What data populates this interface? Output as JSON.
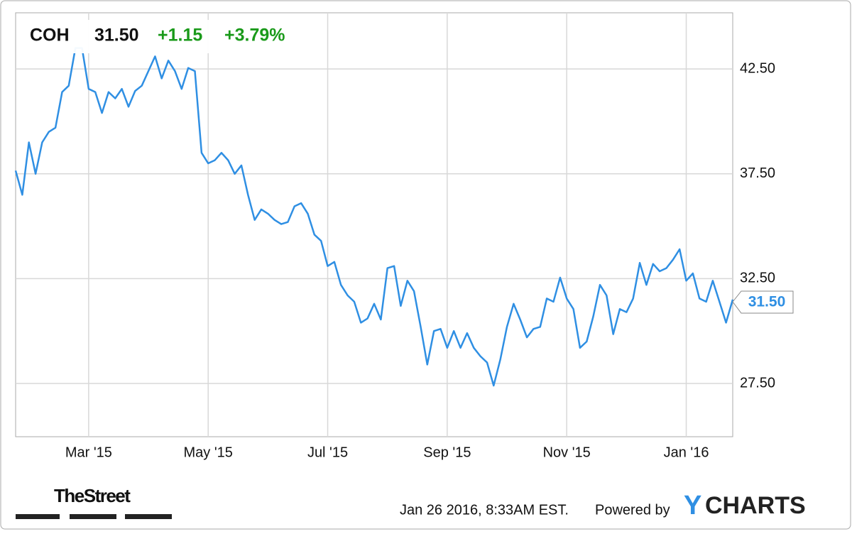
{
  "chart_data": {
    "type": "line",
    "header": {
      "ticker": "COH",
      "price": "31.50",
      "change": "+1.15",
      "change_pct": "+3.79%"
    },
    "last_label": "31.50",
    "categories": [
      null,
      null,
      null,
      null,
      null,
      null,
      null,
      null,
      null,
      null,
      null,
      "Mar '15",
      null,
      null,
      null,
      null,
      null,
      null,
      null,
      null,
      null,
      null,
      null,
      null,
      null,
      null,
      null,
      null,
      null,
      "May '15",
      null,
      null,
      null,
      null,
      null,
      null,
      null,
      null,
      null,
      null,
      null,
      null,
      null,
      null,
      null,
      null,
      null,
      "Jul '15",
      null,
      null,
      null,
      null,
      null,
      null,
      null,
      null,
      null,
      null,
      null,
      null,
      null,
      null,
      null,
      null,
      null,
      "Sep '15",
      null,
      null,
      null,
      null,
      null,
      null,
      null,
      null,
      null,
      null,
      null,
      null,
      null,
      null,
      null,
      null,
      null,
      "Nov '15",
      null,
      null,
      null,
      null,
      null,
      null,
      null,
      null,
      null,
      null,
      null,
      null,
      null,
      null,
      null,
      null,
      null,
      "Jan '16",
      null,
      null,
      null,
      null,
      null,
      null,
      null
    ],
    "values": [
      37.65,
      36.5,
      39.0,
      37.5,
      39.0,
      39.5,
      39.7,
      41.4,
      41.7,
      43.5,
      43.5,
      41.55,
      41.4,
      40.4,
      41.4,
      41.1,
      41.55,
      40.7,
      41.45,
      41.7,
      42.4,
      43.1,
      42.05,
      42.9,
      42.4,
      41.55,
      42.55,
      42.4,
      38.5,
      38.0,
      38.15,
      38.5,
      38.15,
      37.5,
      37.9,
      36.5,
      35.3,
      35.8,
      35.6,
      35.3,
      35.1,
      35.2,
      35.95,
      36.1,
      35.6,
      34.6,
      34.3,
      33.1,
      33.3,
      32.2,
      31.7,
      31.4,
      30.4,
      30.6,
      31.3,
      30.55,
      33.0,
      33.1,
      31.2,
      32.4,
      31.9,
      30.2,
      28.4,
      30.0,
      30.1,
      29.2,
      30.0,
      29.2,
      29.9,
      29.2,
      28.8,
      28.5,
      27.4,
      28.65,
      30.2,
      31.3,
      30.55,
      29.7,
      30.1,
      30.2,
      31.55,
      31.4,
      32.55,
      31.55,
      31.05,
      29.2,
      29.5,
      30.7,
      32.2,
      31.7,
      29.85,
      31.05,
      30.9,
      31.55,
      33.25,
      32.2,
      33.2,
      32.85,
      33.0,
      33.4,
      33.9,
      32.4,
      32.75,
      31.55,
      31.4,
      32.4,
      31.4,
      30.4,
      31.5
    ],
    "color": "#2f8fe3",
    "ylim": [
      24.96,
      45.18
    ],
    "yticks": [
      {
        "value": 27.5,
        "label": "27.50"
      },
      {
        "value": 32.5,
        "label": "32.50"
      },
      {
        "value": 37.5,
        "label": "37.50"
      },
      {
        "value": 42.5,
        "label": "42.50"
      }
    ],
    "grid": true,
    "footer": {
      "brand": "TheStreet",
      "timestamp": "Jan 26 2016, 8:33AM EST.",
      "powered": "Powered by",
      "logo_y": "Y",
      "logo_rest": "CHARTS"
    }
  }
}
